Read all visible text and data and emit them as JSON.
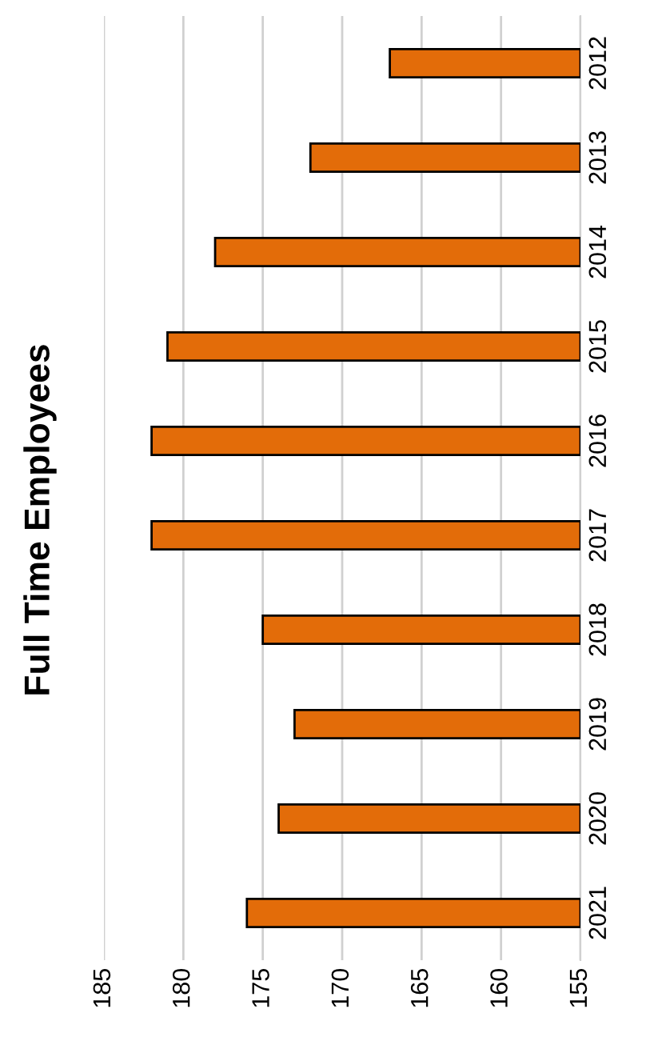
{
  "chart_data": {
    "type": "bar",
    "orientation": "horizontal",
    "title": "Full Time Employees",
    "categories": [
      "2012",
      "2013",
      "2014",
      "2015",
      "2016",
      "2017",
      "2018",
      "2019",
      "2020",
      "2021"
    ],
    "values": [
      167,
      172,
      178,
      181,
      182,
      182,
      175,
      173,
      174,
      176
    ],
    "color": "#e36c09",
    "xlim": [
      185,
      155
    ],
    "xticks": [
      185,
      180,
      175,
      170,
      165,
      160,
      155
    ],
    "grid": "x"
  }
}
